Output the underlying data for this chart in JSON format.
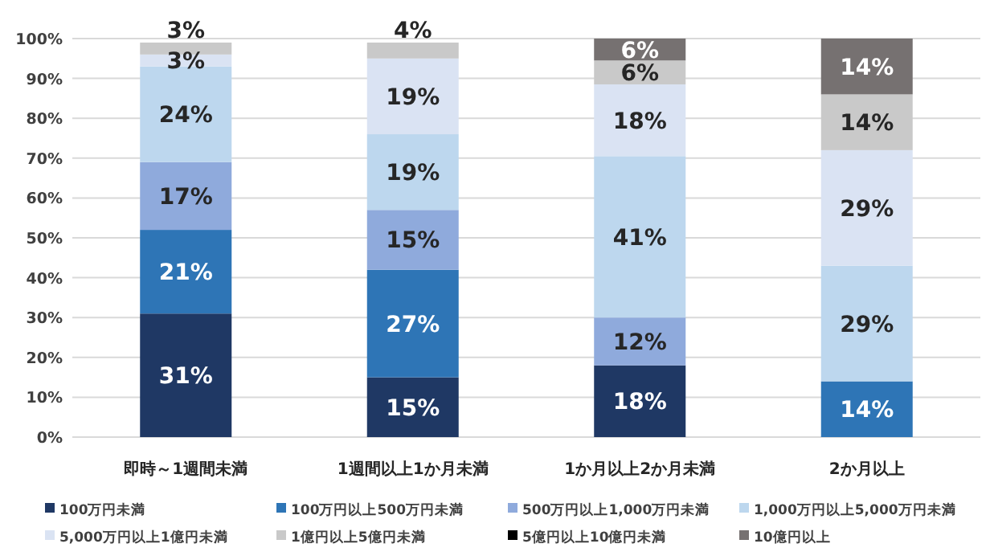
{
  "chart_data": {
    "type": "bar",
    "stacked": true,
    "categories": [
      "即時～1週間未満",
      "1週間以上1か月未満",
      "1か月以上2か月未満",
      "2か月以上"
    ],
    "series": [
      {
        "name": "100万円未満",
        "color": "#1f3864",
        "values": [
          31,
          15,
          18,
          null
        ],
        "value_labels": [
          "31%",
          "15%",
          "18%",
          null
        ]
      },
      {
        "name": "100万円以上500万円未満",
        "color": "#2e75b6",
        "values": [
          21,
          27,
          null,
          14
        ],
        "value_labels": [
          "21%",
          "27%",
          null,
          "14%"
        ]
      },
      {
        "name": "500万円以上1,000万円未満",
        "color": "#8faadc",
        "values": [
          17,
          15,
          12,
          null
        ],
        "value_labels": [
          "17%",
          "15%",
          "12%",
          null
        ]
      },
      {
        "name": "1,000万円以上5,000万円未満",
        "color": "#bdd7ee",
        "values": [
          24,
          19,
          40.5,
          29
        ],
        "value_labels": [
          "24%",
          "19%",
          "41%",
          "29%"
        ]
      },
      {
        "name": "5,000万円以上1億円未満",
        "color": "#dae3f3",
        "values": [
          3,
          19,
          18,
          29
        ],
        "value_labels": [
          "3%",
          "19%",
          "18%",
          "29%"
        ]
      },
      {
        "name": "1億円以上5億円未満",
        "color": "#c9c9c9",
        "values": [
          3,
          4,
          6,
          14
        ],
        "value_labels": [
          "3%",
          "4%",
          "6%",
          "14%"
        ]
      },
      {
        "name": "5億円以上10億円未満",
        "color": "#000000",
        "values": [
          null,
          null,
          null,
          null
        ]
      },
      {
        "name": "10億円以上",
        "color": "#767171",
        "values": [
          null,
          null,
          5.5,
          14
        ],
        "value_labels": [
          null,
          null,
          "6%",
          "14%"
        ]
      }
    ],
    "ylim": [
      0,
      100
    ],
    "yticks": [
      {
        "value": 0,
        "label": "0%"
      },
      {
        "value": 10,
        "label": "10%"
      },
      {
        "value": 20,
        "label": "20%"
      },
      {
        "value": 30,
        "label": "30%"
      },
      {
        "value": 40,
        "label": "40%"
      },
      {
        "value": 50,
        "label": "50%"
      },
      {
        "value": 60,
        "label": "60%"
      },
      {
        "value": 70,
        "label": "70%"
      },
      {
        "value": 80,
        "label": "80%"
      },
      {
        "value": 90,
        "label": "90%"
      },
      {
        "value": 100,
        "label": "100%"
      }
    ],
    "grid": "y",
    "legend": "bottom"
  }
}
